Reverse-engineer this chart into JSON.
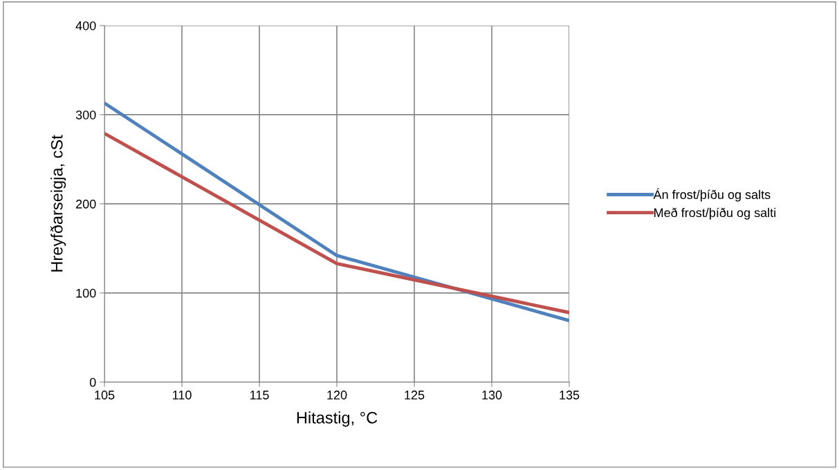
{
  "chart_data": {
    "type": "line",
    "xlabel": "Hitastig, °C",
    "ylabel": "Hreyfðarseigja, cSt",
    "series": [
      {
        "name": "Án frost/þíðu og salts",
        "color": "#4f81bd",
        "x": [
          105,
          120,
          135
        ],
        "values": [
          313,
          142,
          69
        ]
      },
      {
        "name": "Með frost/þíðu og salti",
        "color": "#c0504d",
        "x": [
          105,
          120,
          135
        ],
        "values": [
          279,
          133,
          78
        ]
      }
    ],
    "xlim": [
      105,
      135
    ],
    "xticks": [
      105,
      110,
      115,
      120,
      125,
      130,
      135
    ],
    "ylim": [
      0,
      400
    ],
    "yticks": [
      0,
      100,
      200,
      300,
      400
    ],
    "grid": true,
    "legend": "right",
    "marker": "none",
    "line_style": "solid"
  }
}
